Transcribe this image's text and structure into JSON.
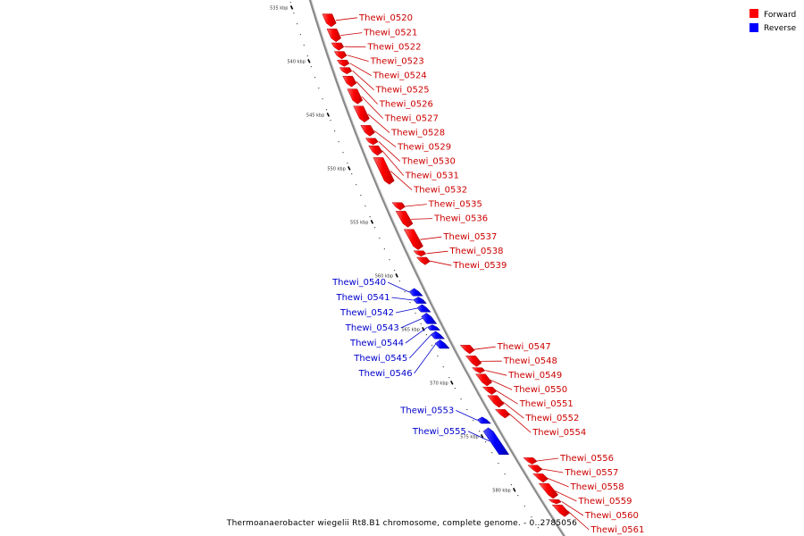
{
  "caption": "Thermoanaerobacter wiegelii Rt8.B1 chromosome, complete genome. - 0..2785056",
  "colors": {
    "forward": "#ff0000",
    "reverse": "#0000ff",
    "forward_label": "#cc0000",
    "reverse_label": "#0000cc",
    "backbone": "#888888"
  },
  "legend": [
    {
      "label": "Forward",
      "color": "#ff0000"
    },
    {
      "label": "Reverse",
      "color": "#0000ff"
    }
  ],
  "ruler": [
    {
      "label": "535 kbp",
      "kbp": 535
    },
    {
      "label": "540 kbp",
      "kbp": 540
    },
    {
      "label": "545 kbp",
      "kbp": 545
    },
    {
      "label": "550 kbp",
      "kbp": 550
    },
    {
      "label": "555 kbp",
      "kbp": 555
    },
    {
      "label": "560 kbp",
      "kbp": 560
    },
    {
      "label": "565 kbp",
      "kbp": 565
    },
    {
      "label": "570 kbp",
      "kbp": 570
    },
    {
      "label": "575 kbp",
      "kbp": 575
    },
    {
      "label": "580 kbp",
      "kbp": 580
    }
  ],
  "genes": [
    {
      "name": "Thewi_0520",
      "strand": "forward",
      "start_kbp": 535.6,
      "end_kbp": 536.8
    },
    {
      "name": "Thewi_0521",
      "strand": "forward",
      "start_kbp": 537.0,
      "end_kbp": 538.2
    },
    {
      "name": "Thewi_0522",
      "strand": "forward",
      "start_kbp": 538.3,
      "end_kbp": 539.0
    },
    {
      "name": "Thewi_0523",
      "strand": "forward",
      "start_kbp": 539.1,
      "end_kbp": 539.8
    },
    {
      "name": "Thewi_0524",
      "strand": "forward",
      "start_kbp": 539.9,
      "end_kbp": 540.5
    },
    {
      "name": "Thewi_0525",
      "strand": "forward",
      "start_kbp": 540.6,
      "end_kbp": 541.2
    },
    {
      "name": "Thewi_0526",
      "strand": "forward",
      "start_kbp": 541.4,
      "end_kbp": 542.4
    },
    {
      "name": "Thewi_0527",
      "strand": "forward",
      "start_kbp": 542.6,
      "end_kbp": 544.0
    },
    {
      "name": "Thewi_0528",
      "strand": "forward",
      "start_kbp": 544.2,
      "end_kbp": 545.7
    },
    {
      "name": "Thewi_0529",
      "strand": "forward",
      "start_kbp": 546.0,
      "end_kbp": 547.0
    },
    {
      "name": "Thewi_0530",
      "strand": "forward",
      "start_kbp": 547.2,
      "end_kbp": 547.8
    },
    {
      "name": "Thewi_0531",
      "strand": "forward",
      "start_kbp": 547.9,
      "end_kbp": 548.8
    },
    {
      "name": "Thewi_0532",
      "strand": "forward",
      "start_kbp": 549.0,
      "end_kbp": 551.5
    },
    {
      "name": "Thewi_0535",
      "strand": "forward",
      "start_kbp": 553.2,
      "end_kbp": 553.9
    },
    {
      "name": "Thewi_0536",
      "strand": "forward",
      "start_kbp": 554.0,
      "end_kbp": 555.5
    },
    {
      "name": "Thewi_0537",
      "strand": "forward",
      "start_kbp": 555.7,
      "end_kbp": 557.6
    },
    {
      "name": "Thewi_0538",
      "strand": "forward",
      "start_kbp": 557.7,
      "end_kbp": 558.2
    },
    {
      "name": "Thewi_0539",
      "strand": "forward",
      "start_kbp": 558.3,
      "end_kbp": 559.0
    },
    {
      "name": "Thewi_0540",
      "strand": "reverse",
      "start_kbp": 561.2,
      "end_kbp": 561.9
    },
    {
      "name": "Thewi_0541",
      "strand": "reverse",
      "start_kbp": 562.0,
      "end_kbp": 562.6
    },
    {
      "name": "Thewi_0542",
      "strand": "reverse",
      "start_kbp": 562.7,
      "end_kbp": 563.4
    },
    {
      "name": "Thewi_0543",
      "strand": "reverse",
      "start_kbp": 563.5,
      "end_kbp": 564.5
    },
    {
      "name": "Thewi_0544",
      "strand": "reverse",
      "start_kbp": 564.6,
      "end_kbp": 565.1
    },
    {
      "name": "Thewi_0545",
      "strand": "reverse",
      "start_kbp": 565.2,
      "end_kbp": 565.9
    },
    {
      "name": "Thewi_0546",
      "strand": "reverse",
      "start_kbp": 566.0,
      "end_kbp": 566.8
    },
    {
      "name": "Thewi_0547",
      "strand": "forward",
      "start_kbp": 566.5,
      "end_kbp": 567.3
    },
    {
      "name": "Thewi_0548",
      "strand": "forward",
      "start_kbp": 567.5,
      "end_kbp": 568.5
    },
    {
      "name": "Thewi_0549",
      "strand": "forward",
      "start_kbp": 568.6,
      "end_kbp": 569.1
    },
    {
      "name": "Thewi_0550",
      "strand": "forward",
      "start_kbp": 569.2,
      "end_kbp": 570.3
    },
    {
      "name": "Thewi_0551",
      "strand": "forward",
      "start_kbp": 570.4,
      "end_kbp": 571.1
    },
    {
      "name": "Thewi_0552",
      "strand": "forward",
      "start_kbp": 571.2,
      "end_kbp": 572.3
    },
    {
      "name": "Thewi_0553",
      "strand": "reverse",
      "start_kbp": 573.2,
      "end_kbp": 573.8
    },
    {
      "name": "Thewi_0554",
      "strand": "forward",
      "start_kbp": 572.5,
      "end_kbp": 573.3
    },
    {
      "name": "Thewi_0555",
      "strand": "reverse",
      "start_kbp": 574.2,
      "end_kbp": 576.7
    },
    {
      "name": "Thewi_0556",
      "strand": "forward",
      "start_kbp": 577.0,
      "end_kbp": 577.6
    },
    {
      "name": "Thewi_0557",
      "strand": "forward",
      "start_kbp": 577.7,
      "end_kbp": 578.4
    },
    {
      "name": "Thewi_0558",
      "strand": "forward",
      "start_kbp": 578.5,
      "end_kbp": 579.3
    },
    {
      "name": "Thewi_0559",
      "strand": "forward",
      "start_kbp": 579.4,
      "end_kbp": 580.8
    },
    {
      "name": "Thewi_0560",
      "strand": "forward",
      "start_kbp": 580.9,
      "end_kbp": 581.3
    },
    {
      "name": "Thewi_0561",
      "strand": "forward",
      "start_kbp": 581.4,
      "end_kbp": 582.5
    }
  ]
}
